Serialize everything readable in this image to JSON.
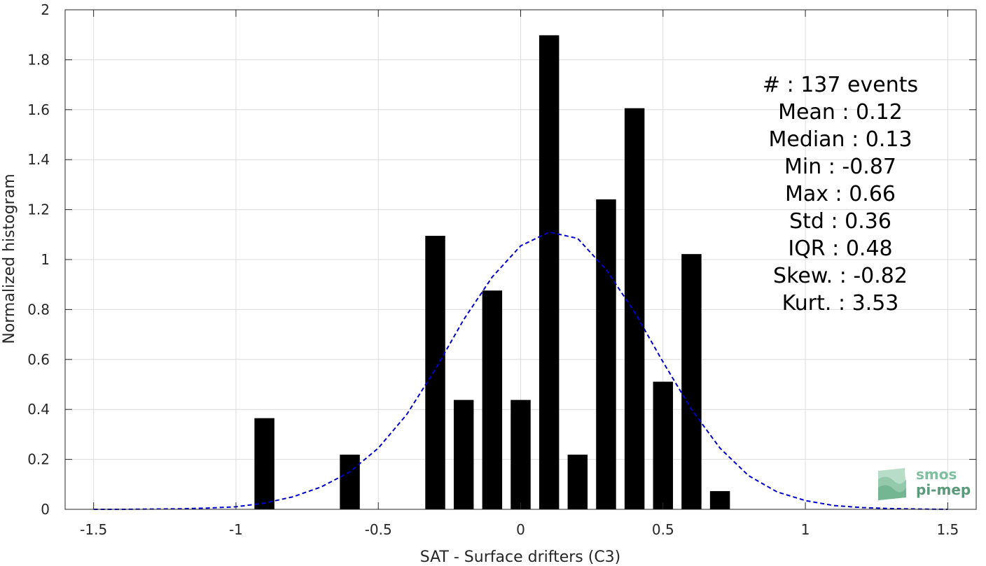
{
  "chart_data": {
    "type": "bar",
    "xlabel": "SAT - Surface drifters (C3)",
    "ylabel": "Normalized histogram",
    "xlim": [
      -1.6,
      1.6
    ],
    "ylim": [
      0,
      2
    ],
    "grid": true,
    "xticks": [
      -1.5,
      -1,
      -0.5,
      0,
      0.5,
      1,
      1.5
    ],
    "xtick_labels": [
      "-1.5",
      "-1",
      "-0.5",
      "0",
      "0.5",
      "1",
      "1.5"
    ],
    "yticks": [
      0,
      0.2,
      0.4,
      0.6,
      0.8,
      1,
      1.2,
      1.4,
      1.6,
      1.8,
      2
    ],
    "ytick_labels": [
      "0",
      "0.2",
      "0.4",
      "0.6",
      "0.8",
      "1",
      "1.2",
      "1.4",
      "1.6",
      "1.8",
      "2"
    ],
    "bar_width": 0.07,
    "bars": [
      {
        "x": -0.9,
        "value": 0.365
      },
      {
        "x": -0.6,
        "value": 0.219
      },
      {
        "x": -0.3,
        "value": 1.095
      },
      {
        "x": -0.2,
        "value": 0.438
      },
      {
        "x": -0.1,
        "value": 0.876
      },
      {
        "x": 0.0,
        "value": 0.438
      },
      {
        "x": 0.1,
        "value": 1.898
      },
      {
        "x": 0.2,
        "value": 0.219
      },
      {
        "x": 0.3,
        "value": 1.241
      },
      {
        "x": 0.4,
        "value": 1.606
      },
      {
        "x": 0.5,
        "value": 0.511
      },
      {
        "x": 0.6,
        "value": 1.022
      },
      {
        "x": 0.7,
        "value": 0.073
      }
    ],
    "fit_curve": {
      "style": "dashed",
      "color": "#0000cc",
      "x": [
        -1.5,
        -1.4,
        -1.3,
        -1.2,
        -1.1,
        -1.0,
        -0.9,
        -0.8,
        -0.7,
        -0.6,
        -0.5,
        -0.4,
        -0.3,
        -0.2,
        -0.1,
        0.0,
        0.1,
        0.2,
        0.3,
        0.4,
        0.5,
        0.6,
        0.7,
        0.8,
        0.9,
        1.0,
        1.1,
        1.2,
        1.3,
        1.4,
        1.5
      ],
      "y": [
        0.0,
        0.0,
        0.001,
        0.002,
        0.005,
        0.01,
        0.025,
        0.05,
        0.09,
        0.15,
        0.245,
        0.38,
        0.56,
        0.76,
        0.93,
        1.055,
        1.11,
        1.085,
        0.96,
        0.79,
        0.59,
        0.4,
        0.245,
        0.135,
        0.07,
        0.035,
        0.015,
        0.007,
        0.003,
        0.001,
        0.0
      ]
    },
    "stats": [
      {
        "label": "#  : 137 events"
      },
      {
        "label": "Mean : 0.12"
      },
      {
        "label": "Median : 0.13"
      },
      {
        "label": "Min : -0.87"
      },
      {
        "label": "Max : 0.66"
      },
      {
        "label": "Std : 0.36"
      },
      {
        "label": "IQR : 0.48"
      },
      {
        "label": "Skew. : -0.82"
      },
      {
        "label": "Kurt. : 3.53"
      }
    ]
  },
  "logo": {
    "line1": "smos",
    "line2": "pi-mep",
    "color1": "#7fbf9f",
    "color2": "#5a9a7a"
  }
}
